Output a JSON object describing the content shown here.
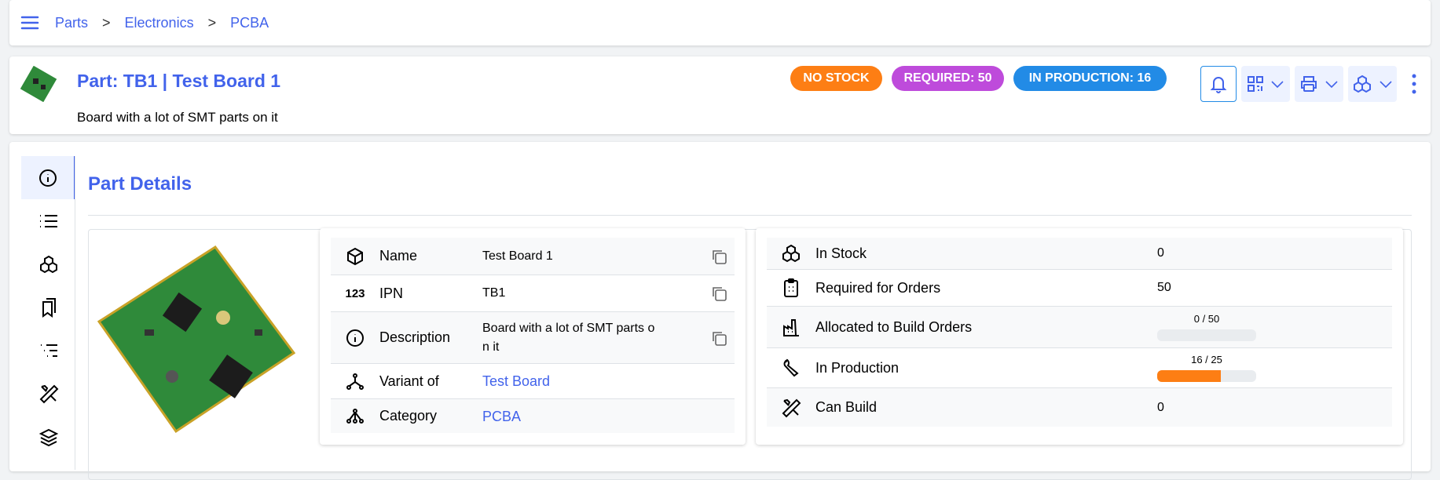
{
  "breadcrumb": {
    "items": [
      "Parts",
      "Electronics",
      "PCBA"
    ],
    "separator": ">"
  },
  "header": {
    "title": "Part: TB1 | Test Board 1",
    "description": "Board with a lot of SMT parts on it",
    "badges": [
      {
        "label": "NO STOCK",
        "color": "#fd7e14"
      },
      {
        "label": "REQUIRED: 50",
        "color": "#be4bdb"
      },
      {
        "label": "IN PRODUCTION: 16",
        "color": "#228be6"
      }
    ],
    "actions": [
      "bell-icon",
      "qrcode-icon",
      "printer-icon",
      "packages-icon",
      "dots-vertical-icon"
    ]
  },
  "sidebar": {
    "items": [
      "info-icon",
      "list-icon",
      "packages-icon",
      "bookmarks-icon",
      "list-tree-icon",
      "tools-icon",
      "stack-icon"
    ],
    "active": 0
  },
  "main": {
    "title": "Part Details",
    "details": [
      {
        "label": "Name",
        "value": "Test Board 1",
        "copy": true
      },
      {
        "label": "IPN",
        "value": "TB1",
        "copy": true
      },
      {
        "label": "Description",
        "value": "Board with a lot of SMT parts on it",
        "copy": true
      },
      {
        "label": "Variant of",
        "value": "Test Board",
        "link": true
      },
      {
        "label": "Category",
        "value": "PCBA",
        "link": true
      }
    ],
    "stock": [
      {
        "label": "In Stock",
        "value": "0"
      },
      {
        "label": "Required for Orders",
        "value": "50"
      },
      {
        "label": "Allocated to Build Orders",
        "progress": "0 / 50",
        "fraction": 0
      },
      {
        "label": "In Production",
        "progress": "16 / 25",
        "fraction": 0.64
      },
      {
        "label": "Can Build",
        "value": "0"
      }
    ]
  }
}
